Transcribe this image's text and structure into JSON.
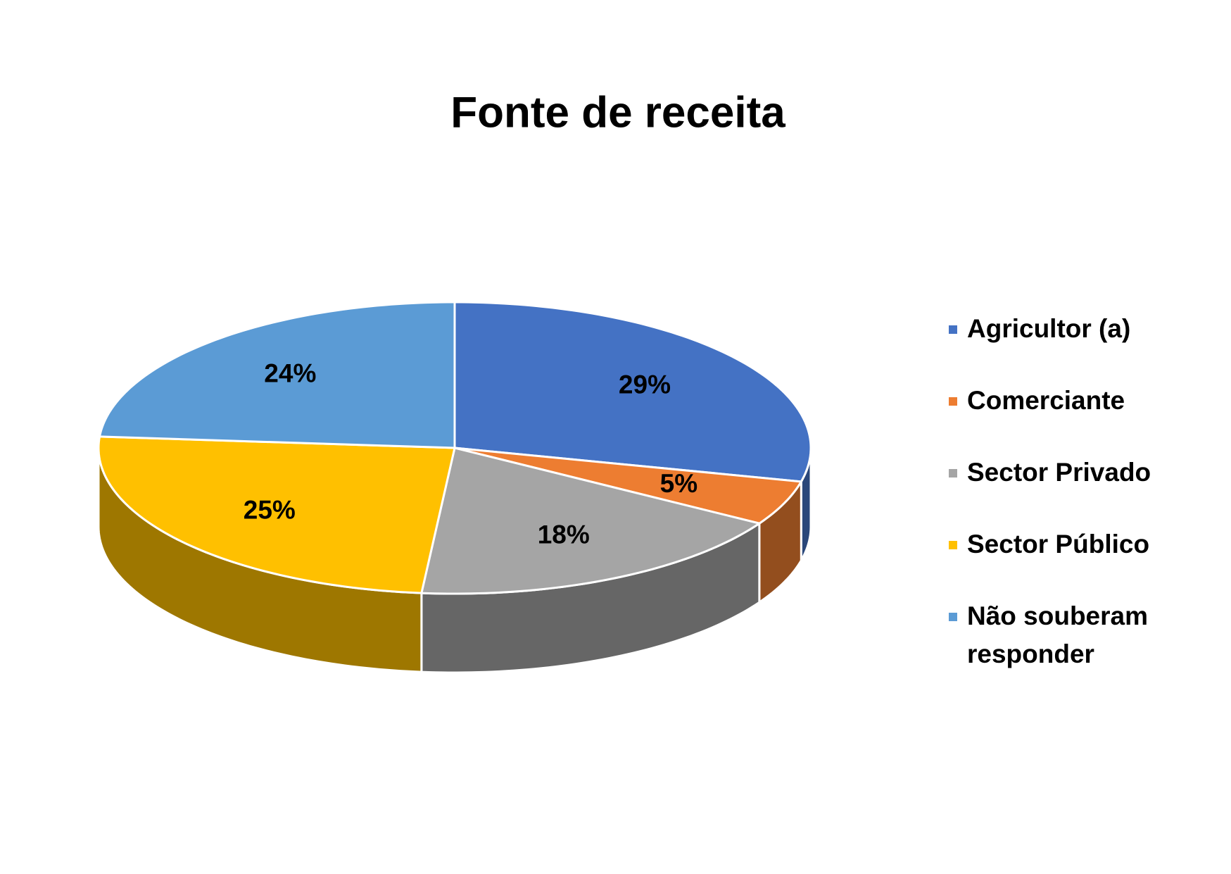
{
  "chart_data": {
    "type": "pie",
    "title": "Fonte de receita",
    "categories": [
      "Agricultor (a)",
      "Comerciante",
      "Sector Privado",
      "Sector Público",
      "Não souberam responder"
    ],
    "values": [
      29,
      5,
      18,
      25,
      24
    ],
    "value_labels": [
      "29%",
      "5%",
      "18%",
      "25%",
      "24%"
    ],
    "colors": [
      "#4472c4",
      "#ed7d31",
      "#a5a5a5",
      "#ffc000",
      "#5b9bd5"
    ],
    "legend": "right"
  }
}
